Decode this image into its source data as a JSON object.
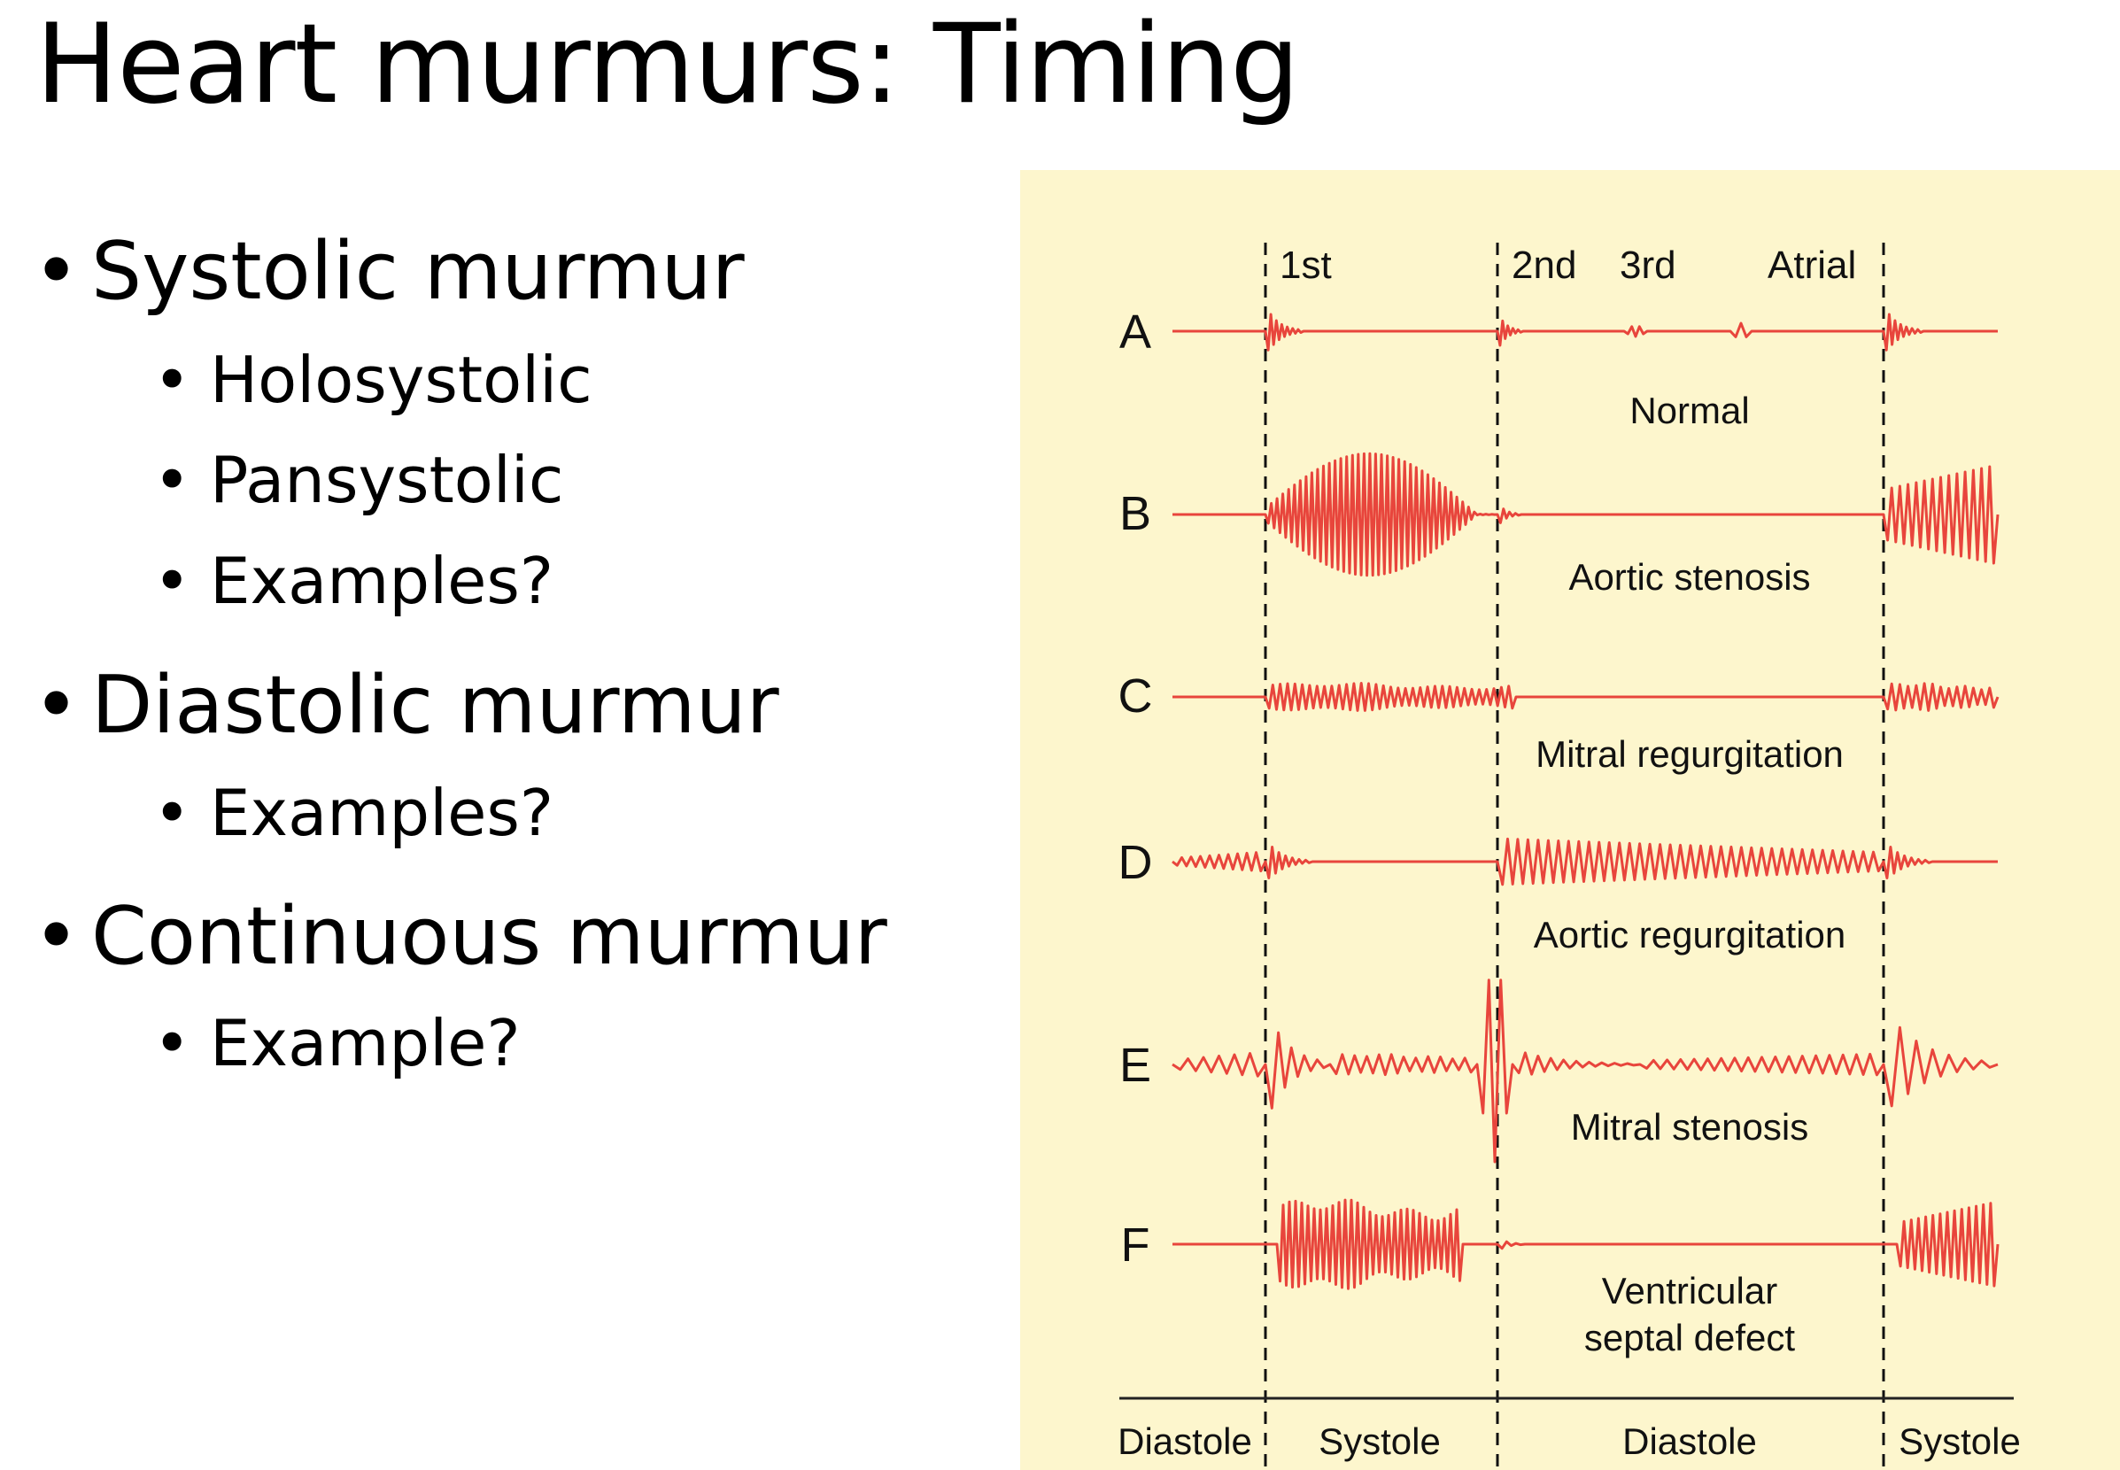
{
  "slide": {
    "title": "Heart murmurs: Timing",
    "bullets": [
      {
        "text": "Systolic murmur",
        "sub": [
          "Holosystolic",
          "Pansystolic",
          "Examples?"
        ]
      },
      {
        "text": "Diastolic murmur",
        "sub": [
          "Examples?"
        ]
      },
      {
        "text": "Continuous murmur",
        "sub": [
          "Example?"
        ]
      }
    ]
  },
  "diagram": {
    "background_color": "#fdf6cd",
    "trace_color": "#e8453c",
    "sound_labels": [
      "1st",
      "2nd",
      "3rd",
      "Atrial"
    ],
    "rows": [
      {
        "letter": "A",
        "caption": "Normal"
      },
      {
        "letter": "B",
        "caption": "Aortic stenosis"
      },
      {
        "letter": "C",
        "caption": "Mitral regurgitation"
      },
      {
        "letter": "D",
        "caption": "Aortic regurgitation"
      },
      {
        "letter": "E",
        "caption": "Mitral stenosis"
      },
      {
        "letter": "F",
        "caption": "Ventricular",
        "caption2": "septal defect"
      }
    ],
    "phases": [
      "Diastole",
      "Systole",
      "Diastole",
      "Systole"
    ]
  }
}
